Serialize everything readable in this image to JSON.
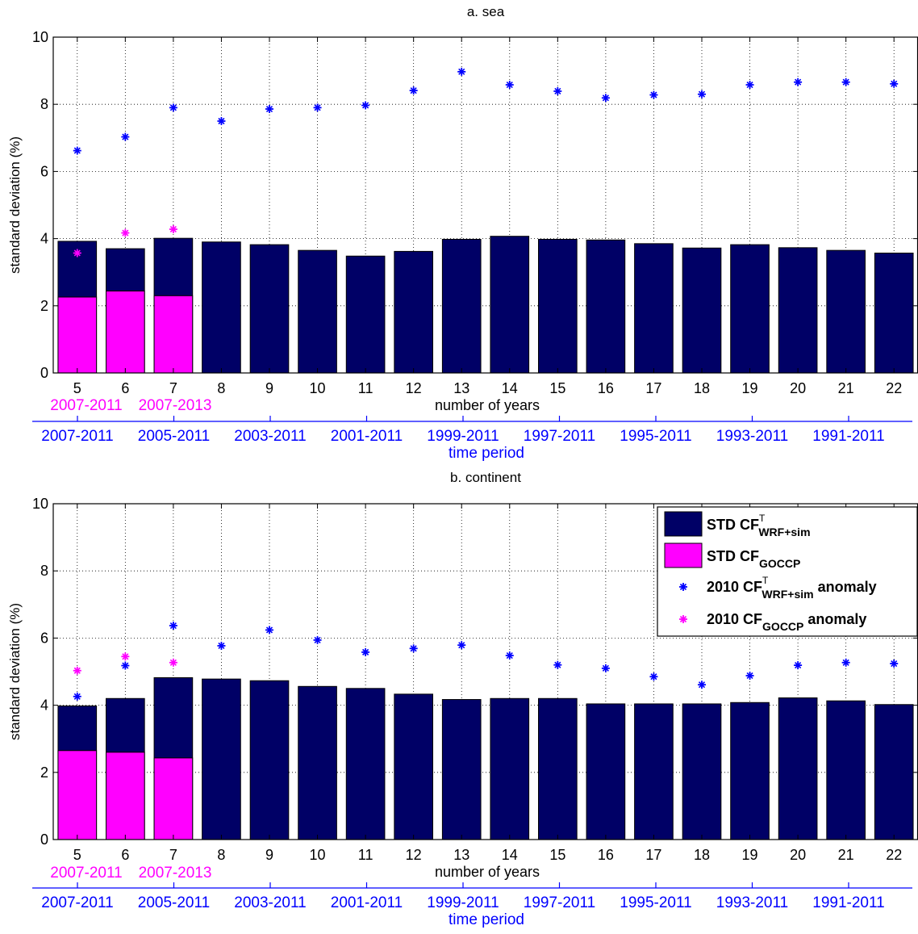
{
  "chart_data": [
    {
      "type": "bar",
      "title": "a. sea",
      "xlabel": "number of years",
      "ylabel": "standard deviation (%)",
      "ylim": [
        0,
        10
      ],
      "yticks": [
        0,
        2,
        4,
        6,
        8,
        10
      ],
      "grid": true,
      "categories": [
        "5",
        "6",
        "7",
        "8",
        "9",
        "10",
        "11",
        "12",
        "13",
        "14",
        "15",
        "16",
        "17",
        "18",
        "19",
        "20",
        "21",
        "22"
      ],
      "period_axis": {
        "label": "time period",
        "ticks": [
          "2007-2011",
          "2005-2011",
          "2003-2011",
          "2001-2011",
          "1999-2011",
          "1997-2011",
          "1995-2011",
          "1993-2011",
          "1991-2011"
        ]
      },
      "goccp_periods": [
        "2007-2011",
        "2007-2013"
      ],
      "series": [
        {
          "name": "STD CF WRF+sim",
          "values": [
            3.92,
            3.7,
            4.01,
            3.9,
            3.82,
            3.65,
            3.48,
            3.62,
            3.98,
            4.07,
            3.98,
            3.96,
            3.85,
            3.72,
            3.82,
            3.73,
            3.65,
            3.57
          ]
        },
        {
          "name": "STD CF GOCCP",
          "values": [
            2.26,
            2.44,
            2.3,
            null,
            null,
            null,
            null,
            null,
            null,
            null,
            null,
            null,
            null,
            null,
            null,
            null,
            null,
            null
          ]
        },
        {
          "name": "2010 CF WRF+sim anomaly",
          "values": [
            6.62,
            7.03,
            7.9,
            7.5,
            7.86,
            7.9,
            7.97,
            8.41,
            8.97,
            8.58,
            8.39,
            8.19,
            8.28,
            8.3,
            8.58,
            8.66,
            8.66,
            8.61
          ]
        },
        {
          "name": "2010 CF GOCCP anomaly",
          "values": [
            3.57,
            4.17,
            4.28,
            null,
            null,
            null,
            null,
            null,
            null,
            null,
            null,
            null,
            null,
            null,
            null,
            null,
            null,
            null
          ]
        }
      ],
      "colors": {
        "std_wrf": "#000066",
        "std_goccp": "#ff00ff",
        "anom_wrf": "#0000ff",
        "anom_goccp": "#ff00ff"
      }
    },
    {
      "type": "bar",
      "title": "b. continent",
      "xlabel": "number of years",
      "ylabel": "standard deviation (%)",
      "ylim": [
        0,
        10
      ],
      "yticks": [
        0,
        2,
        4,
        6,
        8,
        10
      ],
      "grid": true,
      "categories": [
        "5",
        "6",
        "7",
        "8",
        "9",
        "10",
        "11",
        "12",
        "13",
        "14",
        "15",
        "16",
        "17",
        "18",
        "19",
        "20",
        "21",
        "22"
      ],
      "period_axis": {
        "label": "time period",
        "ticks": [
          "2007-2011",
          "2005-2011",
          "2003-2011",
          "2001-2011",
          "1999-2011",
          "1997-2011",
          "1995-2011",
          "1993-2011",
          "1991-2011"
        ]
      },
      "goccp_periods": [
        "2007-2011",
        "2007-2013"
      ],
      "series": [
        {
          "name": "STD CF WRF+sim",
          "values": [
            3.98,
            4.2,
            4.82,
            4.78,
            4.73,
            4.56,
            4.5,
            4.33,
            4.17,
            4.2,
            4.2,
            4.04,
            4.04,
            4.04,
            4.08,
            4.22,
            4.13,
            4.02
          ]
        },
        {
          "name": "STD CF GOCCP",
          "values": [
            2.65,
            2.6,
            2.43,
            null,
            null,
            null,
            null,
            null,
            null,
            null,
            null,
            null,
            null,
            null,
            null,
            null,
            null,
            null
          ]
        },
        {
          "name": "2010 CF WRF+sim anomaly",
          "values": [
            4.26,
            5.18,
            6.37,
            5.77,
            6.24,
            5.94,
            5.58,
            5.69,
            5.79,
            5.48,
            5.2,
            5.1,
            4.85,
            4.61,
            4.88,
            5.19,
            5.27,
            5.24
          ]
        },
        {
          "name": "2010 CF GOCCP anomaly",
          "values": [
            5.03,
            5.45,
            5.27,
            null,
            null,
            null,
            null,
            null,
            null,
            null,
            null,
            null,
            null,
            null,
            null,
            null,
            null,
            null
          ]
        }
      ],
      "legend": {
        "position": "top-right",
        "entries": [
          {
            "prefix": "STD CF",
            "sup": "T",
            "sub": "WRF+sim",
            "suffix": ""
          },
          {
            "prefix": "STD CF",
            "sup": "",
            "sub": "GOCCP",
            "suffix": ""
          },
          {
            "prefix": "2010 CF",
            "sup": "T",
            "sub": "WRF+sim",
            "suffix": " anomaly"
          },
          {
            "prefix": "2010 CF",
            "sup": "",
            "sub": "GOCCP",
            "suffix": " anomaly"
          }
        ]
      },
      "colors": {
        "std_wrf": "#000066",
        "std_goccp": "#ff00ff",
        "anom_wrf": "#0000ff",
        "anom_goccp": "#ff00ff"
      }
    }
  ]
}
